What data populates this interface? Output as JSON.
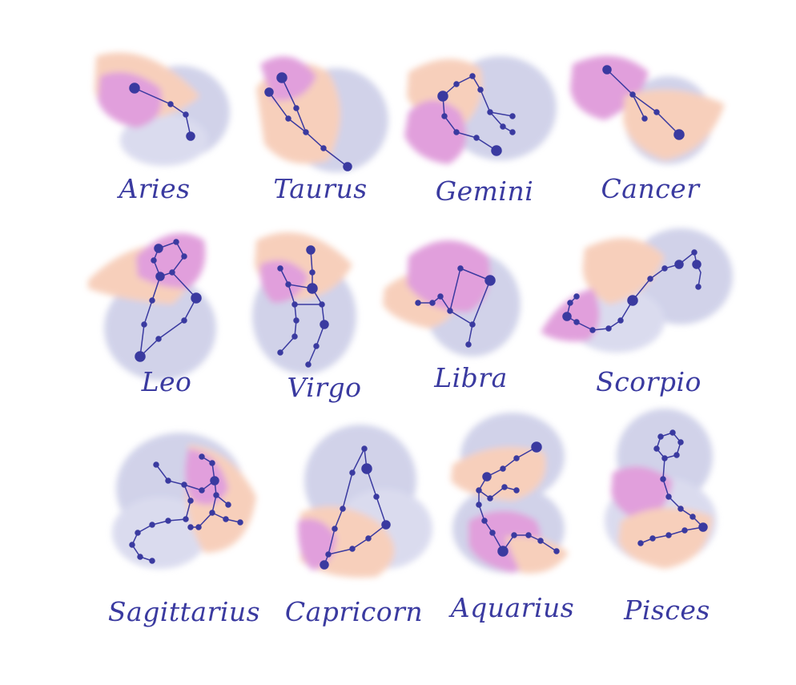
{
  "colors": {
    "background": "#ffffff",
    "ink": "#3a3aa0",
    "wash_lavender": "#c9cbe6",
    "wash_pink": "#dc8fd6",
    "wash_peach": "#f6c7b0"
  },
  "signs": [
    {
      "id": "aries",
      "label": "Aries"
    },
    {
      "id": "taurus",
      "label": "Taurus"
    },
    {
      "id": "gemini",
      "label": "Gemini"
    },
    {
      "id": "cancer",
      "label": "Cancer"
    },
    {
      "id": "leo",
      "label": "Leo"
    },
    {
      "id": "virgo",
      "label": "Virgo"
    },
    {
      "id": "libra",
      "label": "Libra"
    },
    {
      "id": "scorpio",
      "label": "Scorpio"
    },
    {
      "id": "sagittarius",
      "label": "Sagittarius"
    },
    {
      "id": "capricorn",
      "label": "Capricorn"
    },
    {
      "id": "aquarius",
      "label": "Aquarius"
    },
    {
      "id": "pisces",
      "label": "Pisces"
    }
  ]
}
